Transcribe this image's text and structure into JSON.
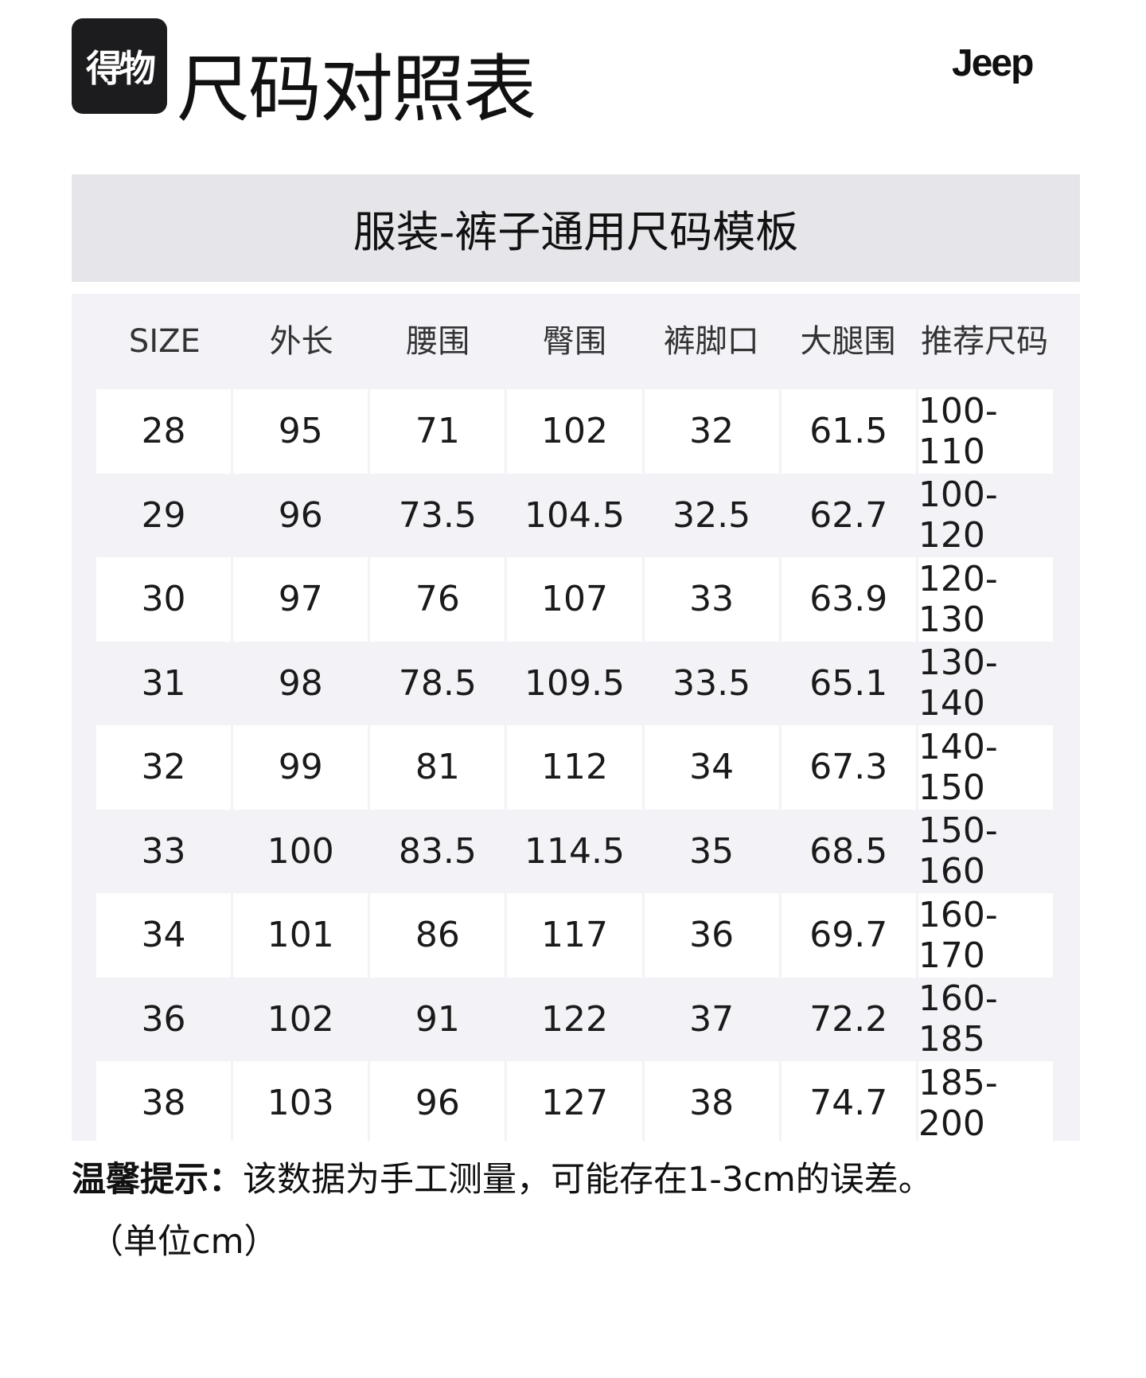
{
  "header": {
    "logo_text": "得物",
    "title": "尺码对照表",
    "brand": "Jeep"
  },
  "template_title": "服装-裤子通用尺码模板",
  "table": {
    "columns": [
      "SIZE",
      "外长",
      "腰围",
      "臀围",
      "裤脚口",
      "大腿围",
      "推荐尺码"
    ],
    "rows": [
      [
        "28",
        "95",
        "71",
        "102",
        "32",
        "61.5",
        "100-110"
      ],
      [
        "29",
        "96",
        "73.5",
        "104.5",
        "32.5",
        "62.7",
        "100-120"
      ],
      [
        "30",
        "97",
        "76",
        "107",
        "33",
        "63.9",
        "120-130"
      ],
      [
        "31",
        "98",
        "78.5",
        "109.5",
        "33.5",
        "65.1",
        "130-140"
      ],
      [
        "32",
        "99",
        "81",
        "112",
        "34",
        "67.3",
        "140-150"
      ],
      [
        "33",
        "100",
        "83.5",
        "114.5",
        "35",
        "68.5",
        "150-160"
      ],
      [
        "34",
        "101",
        "86",
        "117",
        "36",
        "69.7",
        "160-170"
      ],
      [
        "36",
        "102",
        "91",
        "122",
        "37",
        "72.2",
        "160-185"
      ],
      [
        "38",
        "103",
        "96",
        "127",
        "38",
        "74.7",
        "185-200"
      ]
    ]
  },
  "note": {
    "label": "温馨提示：",
    "text": "该数据为手工测量，可能存在1-3cm的误差。",
    "unit": "（单位cm）"
  }
}
